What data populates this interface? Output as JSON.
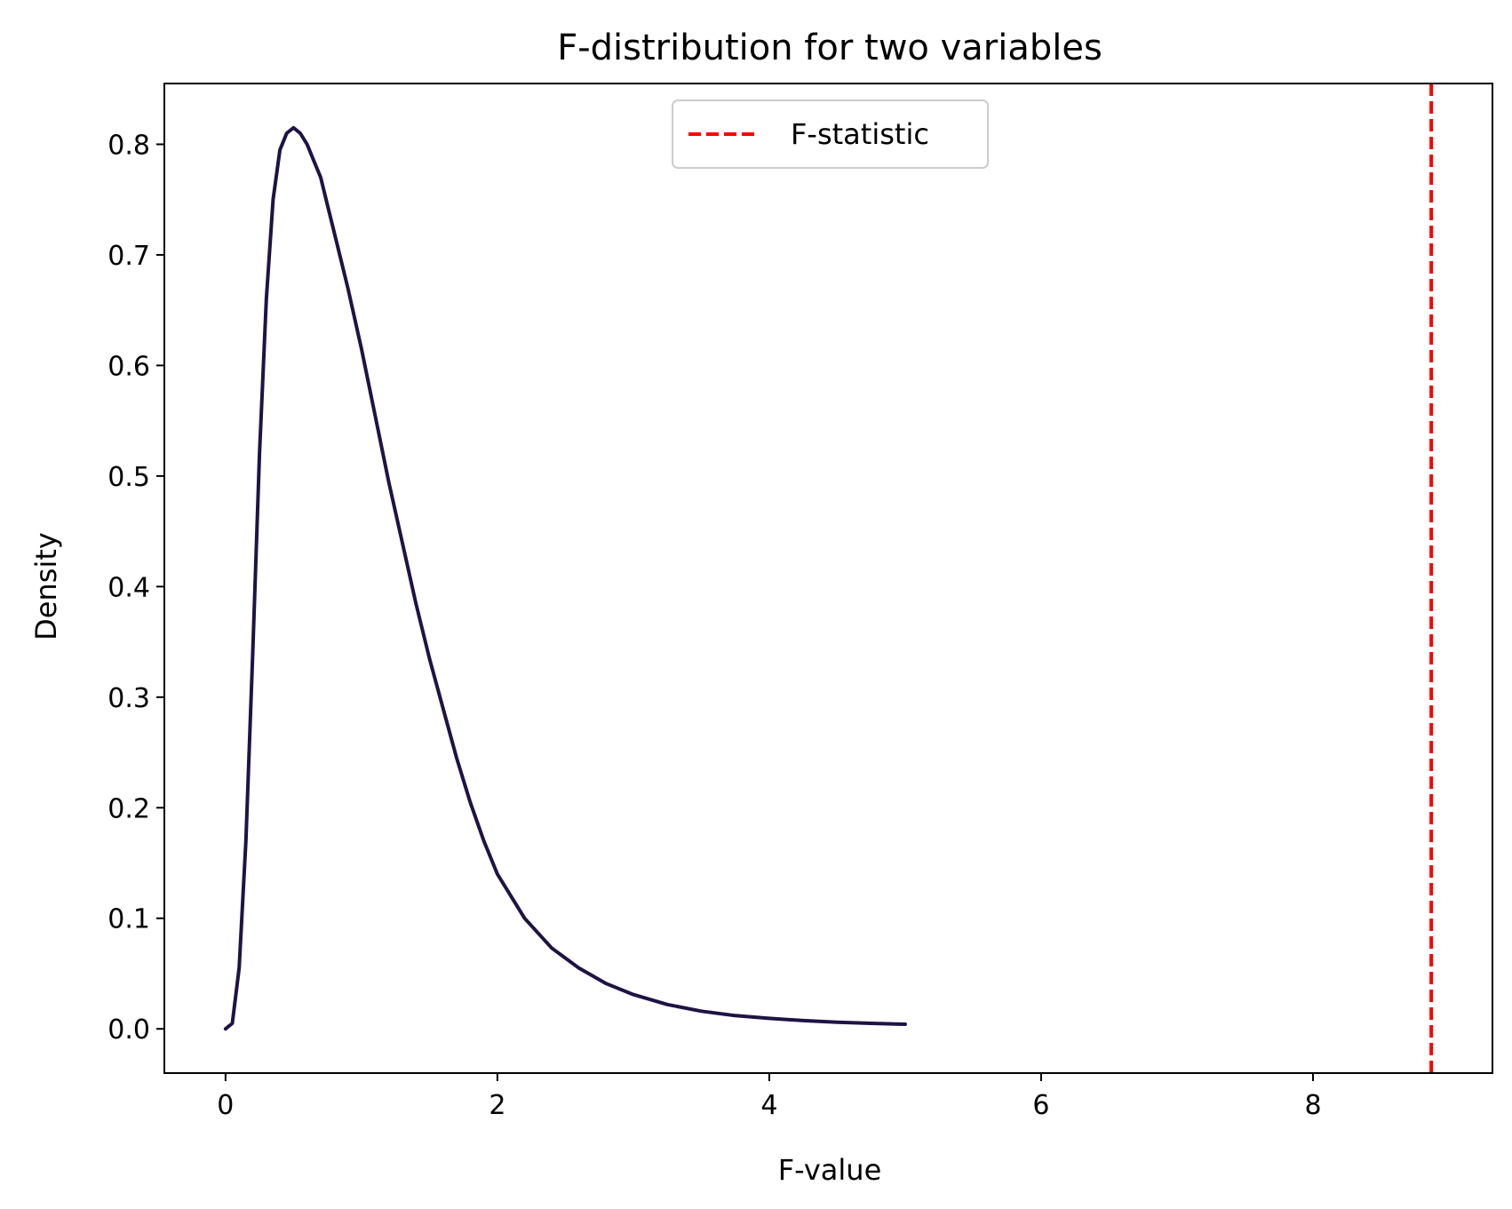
{
  "chart_data": {
    "type": "line",
    "title": "F-distribution for two variables",
    "xlabel": "F-value",
    "ylabel": "Density",
    "xlim": [
      -0.45,
      9.32
    ],
    "ylim": [
      -0.04,
      0.855
    ],
    "xticks": [
      0,
      2,
      4,
      6,
      8
    ],
    "yticks": [
      0.0,
      0.1,
      0.2,
      0.3,
      0.4,
      0.5,
      0.6,
      0.7,
      0.8
    ],
    "x_tick_labels": [
      "0",
      "2",
      "4",
      "6",
      "8"
    ],
    "y_tick_labels": [
      "0.0",
      "0.1",
      "0.2",
      "0.3",
      "0.4",
      "0.5",
      "0.6",
      "0.7",
      "0.8"
    ],
    "grid": false,
    "legend_position": "upper center",
    "series": [
      {
        "type": "line",
        "color": "#1f1345",
        "x": [
          0,
          0.05,
          0.1,
          0.15,
          0.2,
          0.25,
          0.3,
          0.35,
          0.4,
          0.45,
          0.5,
          0.55,
          0.6,
          0.65,
          0.7,
          0.75,
          0.8,
          0.9,
          1.0,
          1.1,
          1.2,
          1.3,
          1.4,
          1.5,
          1.6,
          1.7,
          1.8,
          1.9,
          2.0,
          2.2,
          2.4,
          2.6,
          2.8,
          3.0,
          3.25,
          3.5,
          3.75,
          4.0,
          4.25,
          4.5,
          4.75,
          5.0
        ],
        "values": [
          0.0,
          0.005,
          0.055,
          0.17,
          0.34,
          0.52,
          0.66,
          0.75,
          0.795,
          0.81,
          0.815,
          0.81,
          0.8,
          0.785,
          0.77,
          0.745,
          0.72,
          0.67,
          0.615,
          0.555,
          0.495,
          0.44,
          0.385,
          0.335,
          0.29,
          0.245,
          0.205,
          0.17,
          0.14,
          0.1,
          0.073,
          0.055,
          0.041,
          0.031,
          0.022,
          0.016,
          0.012,
          0.0095,
          0.0075,
          0.006,
          0.005,
          0.0042
        ]
      },
      {
        "type": "vline",
        "name": "F-statistic",
        "color": "#ff0000",
        "dash": "dashed",
        "x": 8.87
      }
    ]
  }
}
